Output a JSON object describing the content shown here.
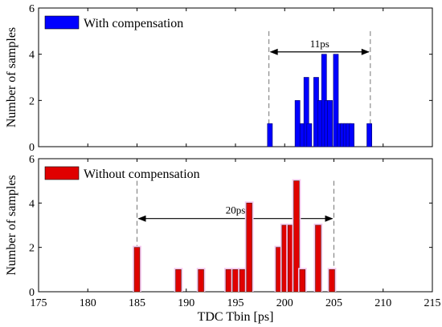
{
  "chart_data": [
    {
      "type": "bar",
      "legend": "With compensation",
      "legend_position": "top-left",
      "color": "#0000ff",
      "ylabel": "Number of samples",
      "xlim": [
        175,
        215
      ],
      "ylim": [
        0,
        6
      ],
      "yticks": [
        "0",
        "2",
        "4",
        "6"
      ],
      "bin_width": 0.5,
      "x": [
        198.5,
        201.3,
        201.8,
        202.2,
        202.5,
        203.2,
        203.6,
        204.0,
        204.3,
        204.6,
        205.2,
        205.6,
        205.9,
        206.2,
        206.5,
        206.8,
        208.6
      ],
      "values": [
        1,
        2,
        1,
        3,
        1,
        3,
        2,
        4,
        2,
        2,
        4,
        1,
        1,
        1,
        1,
        1,
        1
      ],
      "dashed_markers": [
        198.4,
        208.7
      ],
      "annotation": "11ps"
    },
    {
      "type": "bar",
      "legend": "Without compensation",
      "legend_position": "top-left",
      "color": "#e00000",
      "ylabel": "Number of samples",
      "xlabel": "TDC Tbin [ps]",
      "xlim": [
        175,
        215
      ],
      "ylim": [
        0,
        6
      ],
      "yticks": [
        "0",
        "2",
        "4",
        "6"
      ],
      "xticks": [
        "175",
        "180",
        "185",
        "190",
        "195",
        "200",
        "205",
        "210",
        "215"
      ],
      "bin_width": 0.55,
      "x": [
        185.0,
        189.2,
        191.5,
        194.3,
        195.0,
        195.7,
        196.4,
        199.4,
        200.0,
        200.6,
        201.2,
        201.8,
        203.4,
        204.8
      ],
      "values": [
        2,
        1,
        1,
        1,
        1,
        1,
        4,
        2,
        3,
        3,
        5,
        1,
        3,
        1
      ],
      "dashed_markers": [
        185.0,
        205.0
      ],
      "annotation": "20ps"
    }
  ]
}
